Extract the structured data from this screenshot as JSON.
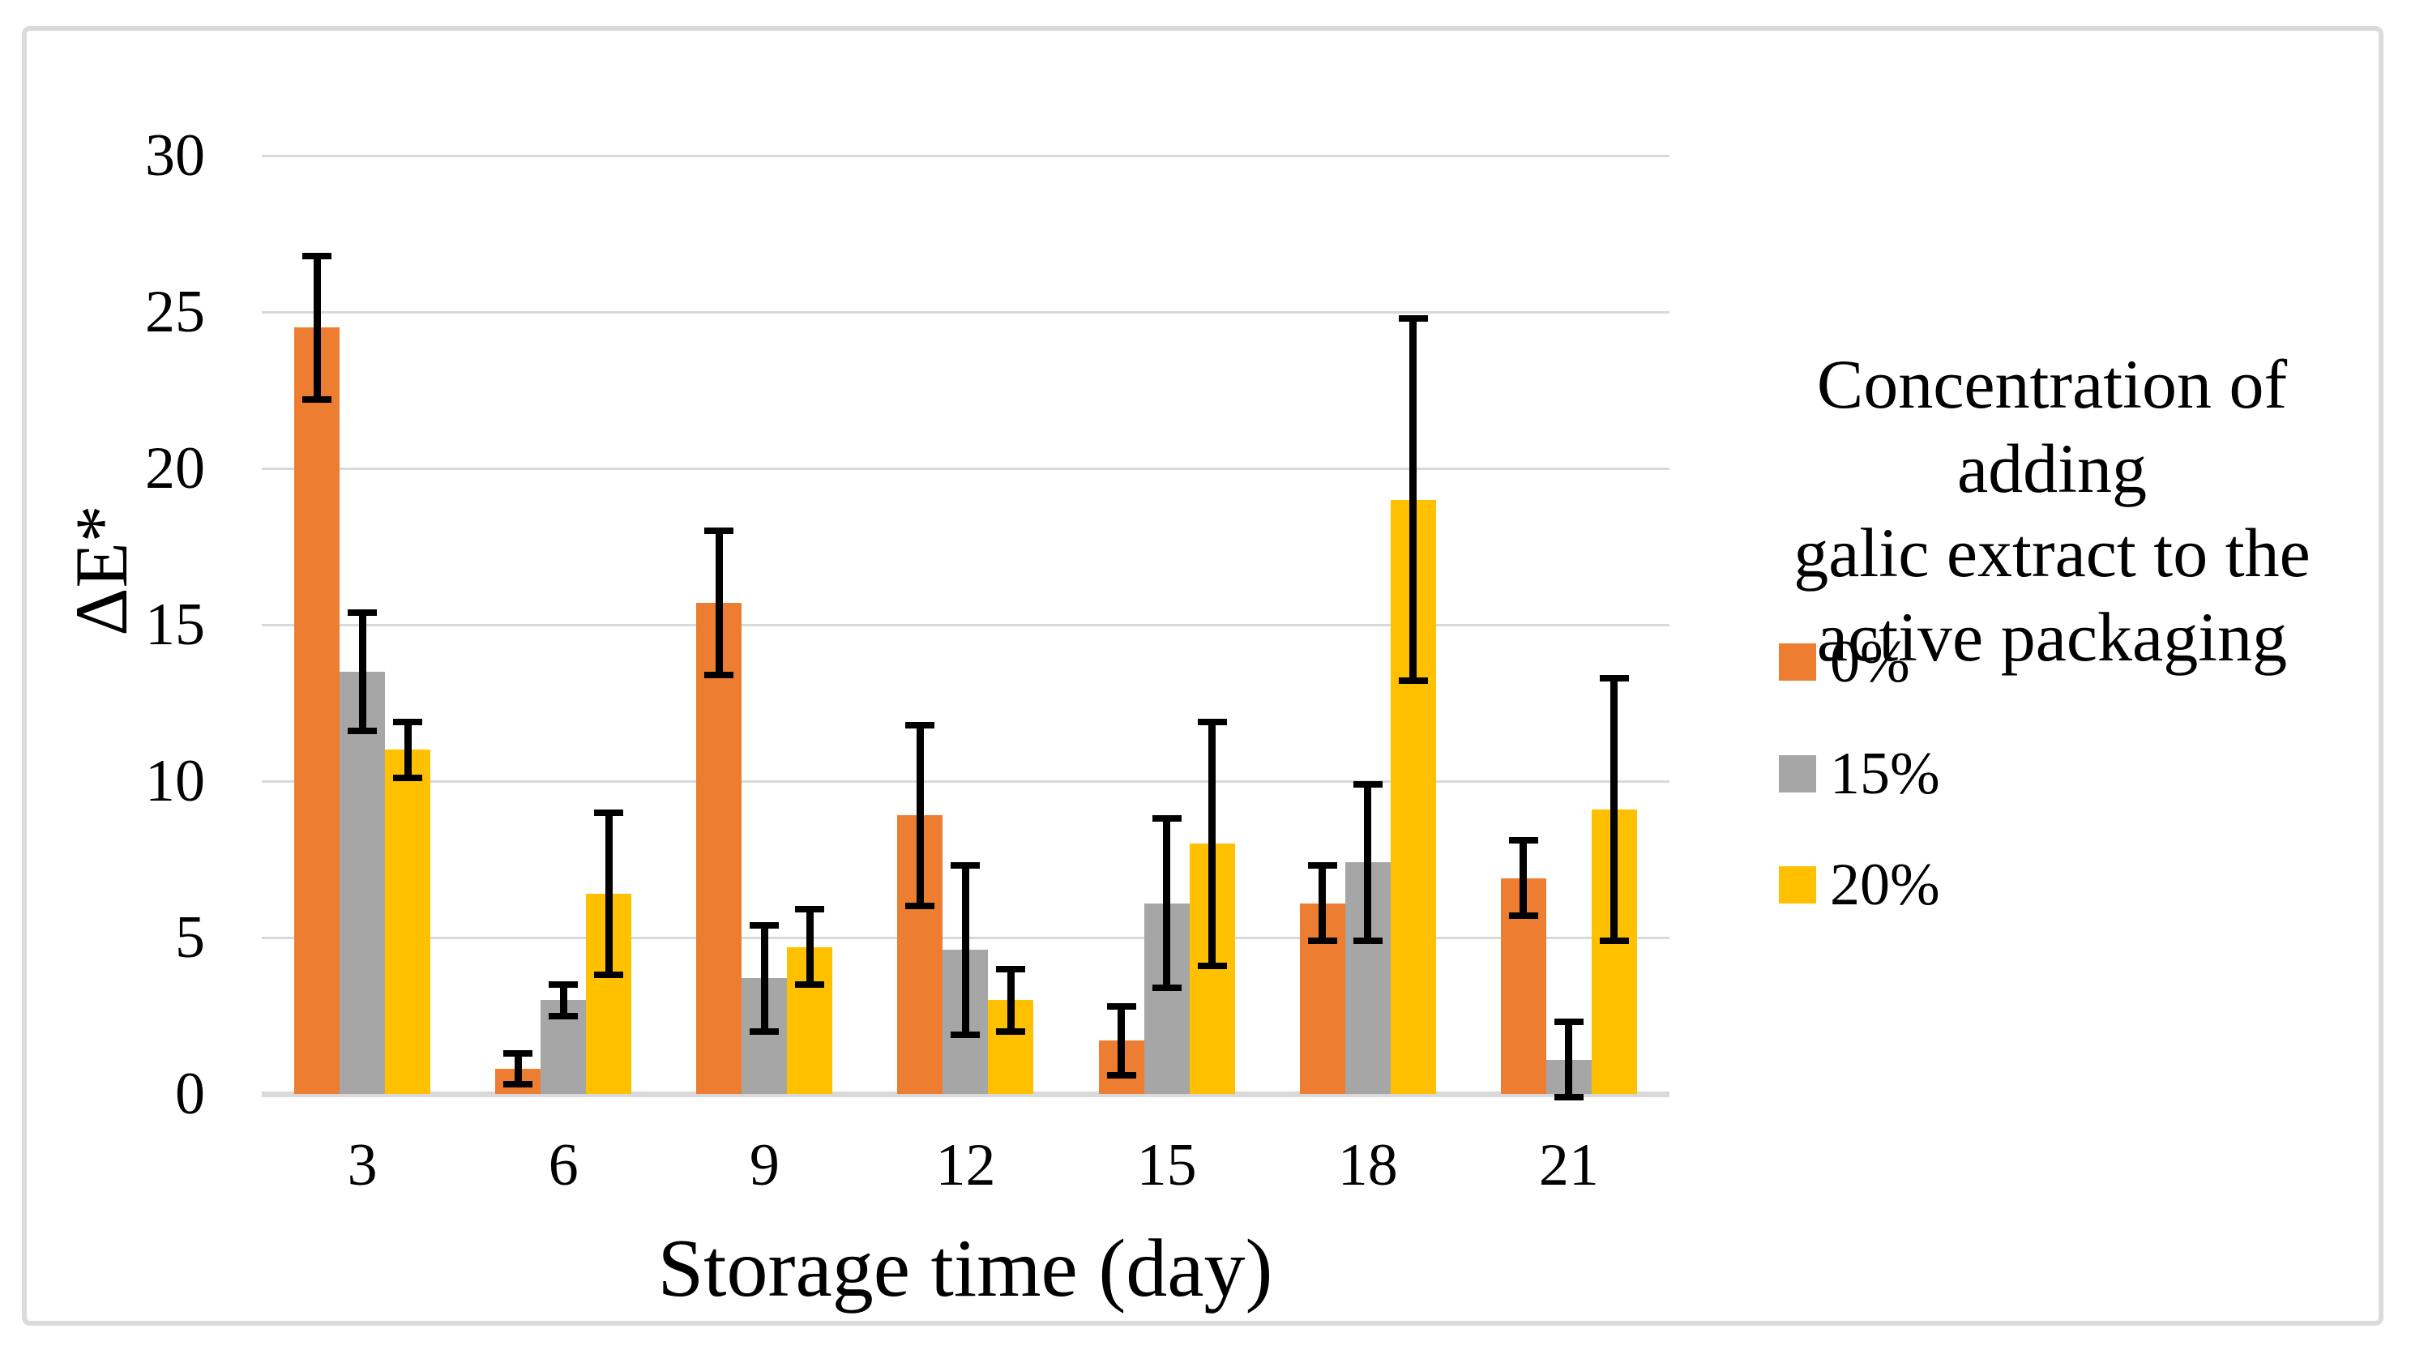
{
  "chart_data": {
    "type": "bar",
    "categories": [
      "3",
      "6",
      "9",
      "12",
      "15",
      "18",
      "21"
    ],
    "xlabel": "Storage time (day)",
    "ylabel": "ΔE*",
    "ylim": [
      0,
      30
    ],
    "yticks": [
      0,
      5,
      10,
      15,
      20,
      25,
      30
    ],
    "grid": true,
    "legend_position": "right",
    "legend_title": "Concentration of adding\ngalic extract to the\nactive packaging",
    "series": [
      {
        "name": "0%",
        "color": "#ED7D31",
        "values": [
          24.5,
          0.8,
          15.7,
          8.9,
          1.7,
          6.1,
          6.9
        ],
        "errors": [
          2.3,
          0.5,
          2.3,
          2.9,
          1.1,
          1.2,
          1.2
        ]
      },
      {
        "name": "15%",
        "color": "#A6A6A6",
        "values": [
          13.5,
          3.0,
          3.7,
          4.6,
          6.1,
          7.4,
          1.1
        ],
        "errors": [
          1.9,
          0.5,
          1.7,
          2.7,
          2.7,
          2.5,
          1.2
        ]
      },
      {
        "name": "20%",
        "color": "#FFC000",
        "values": [
          11.0,
          6.4,
          4.7,
          3.0,
          8.0,
          19.0,
          9.1
        ],
        "errors": [
          0.9,
          2.6,
          1.2,
          1.0,
          3.9,
          5.8,
          4.2
        ]
      }
    ]
  },
  "colors": {
    "grid": "#D9D9D9",
    "frame": "#DBDBDB",
    "error_bar": "#000000",
    "text": "#000000"
  }
}
